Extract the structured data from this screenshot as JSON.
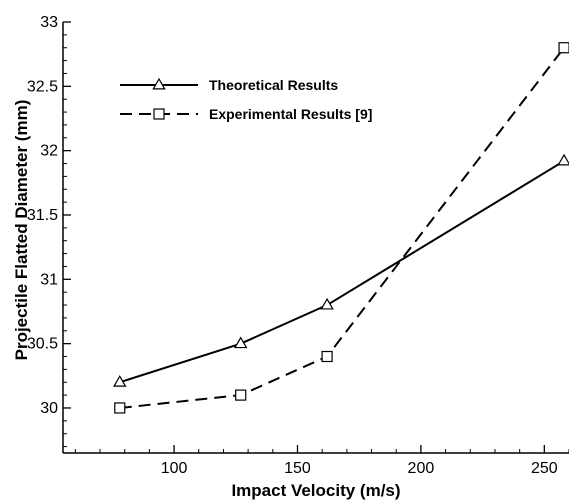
{
  "chart_data": {
    "type": "line",
    "title": "",
    "xlabel": "Impact Velocity (m/s)",
    "ylabel": "Projectile Flatted Diameter (mm)",
    "xlim": [
      55,
      260
    ],
    "ylim": [
      29.65,
      33
    ],
    "xticks": [
      100,
      150,
      200,
      250
    ],
    "xtick_labels": [
      "100",
      "150",
      "200",
      "250"
    ],
    "yticks": [
      30,
      30.5,
      31,
      31.5,
      32,
      32.5,
      33
    ],
    "ytick_labels": [
      "30",
      "30.5",
      "31",
      "31.5",
      "32",
      "32.5",
      "33"
    ],
    "grid": false,
    "legend_position": "top-left",
    "series": [
      {
        "name": "Theoretical Results",
        "line_style": "solid",
        "marker": "triangle",
        "color": "#000000",
        "x": [
          78,
          127,
          162,
          258
        ],
        "y": [
          30.2,
          30.5,
          30.8,
          31.92
        ]
      },
      {
        "name": "Experimental Results [9]",
        "line_style": "dashed",
        "marker": "square",
        "color": "#000000",
        "x": [
          78,
          127,
          162,
          258
        ],
        "y": [
          30.0,
          30.1,
          30.4,
          32.8
        ]
      }
    ]
  }
}
